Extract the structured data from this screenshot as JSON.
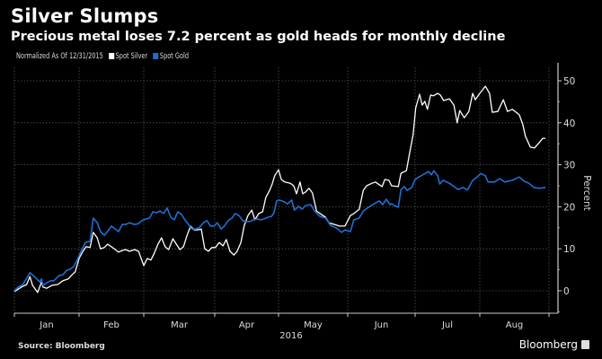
{
  "title": "Silver Slumps",
  "subtitle": "Precious metal loses 7.2 percent as gold heads for monthly decline",
  "legend": {
    "note": "Normalized As Of 12/31/2015",
    "items": [
      {
        "label": "Spot Silver",
        "color": "#ffffff"
      },
      {
        "label": "Spot Gold",
        "color": "#1f6fd1"
      }
    ]
  },
  "footer": {
    "source": "Source: Bloomberg",
    "brand": "Bloomberg"
  },
  "chart_data": {
    "type": "line",
    "title": "Silver Slumps",
    "subtitle": "Precious metal loses 7.2 percent as gold heads for monthly decline",
    "xlabel": "2016",
    "ylabel": "Percent",
    "x_unit": "months elapsed since Jan 1, 2016",
    "x_range": [
      0,
      8
    ],
    "ylim": [
      -5,
      53
    ],
    "y_ticks": [
      0,
      10,
      20,
      30,
      40,
      50
    ],
    "x_tick_labels": [
      "Jan",
      "Feb",
      "Mar",
      "Apr",
      "May",
      "Jun",
      "Jul",
      "Aug"
    ],
    "grid": true,
    "legend_position": "top-left",
    "series": [
      {
        "name": "Spot Silver",
        "color": "#ffffff",
        "points": [
          [
            0.0,
            -0.2
          ],
          [
            0.11,
            0.9
          ],
          [
            0.19,
            1.5
          ],
          [
            0.24,
            3.4
          ],
          [
            0.28,
            1.3
          ],
          [
            0.36,
            -0.4
          ],
          [
            0.42,
            2.1
          ],
          [
            0.44,
            0.9
          ],
          [
            0.5,
            0.6
          ],
          [
            0.58,
            1.3
          ],
          [
            0.67,
            1.5
          ],
          [
            0.75,
            2.4
          ],
          [
            0.83,
            2.8
          ],
          [
            0.89,
            3.8
          ],
          [
            0.94,
            4.5
          ],
          [
            1.0,
            7.7
          ],
          [
            1.06,
            9.4
          ],
          [
            1.11,
            10.5
          ],
          [
            1.17,
            10.3
          ],
          [
            1.22,
            13.9
          ],
          [
            1.28,
            12.6
          ],
          [
            1.33,
            10.0
          ],
          [
            1.39,
            10.3
          ],
          [
            1.44,
            11.1
          ],
          [
            1.5,
            10.5
          ],
          [
            1.56,
            9.8
          ],
          [
            1.61,
            9.2
          ],
          [
            1.67,
            9.6
          ],
          [
            1.72,
            9.8
          ],
          [
            1.78,
            9.4
          ],
          [
            1.86,
            9.8
          ],
          [
            1.92,
            9.4
          ],
          [
            1.97,
            7.3
          ],
          [
            2.0,
            6.0
          ],
          [
            2.05,
            7.7
          ],
          [
            2.1,
            7.3
          ],
          [
            2.15,
            9.0
          ],
          [
            2.2,
            11.1
          ],
          [
            2.25,
            12.6
          ],
          [
            2.3,
            10.5
          ],
          [
            2.35,
            9.8
          ],
          [
            2.41,
            12.4
          ],
          [
            2.46,
            11.1
          ],
          [
            2.51,
            9.8
          ],
          [
            2.56,
            10.5
          ],
          [
            2.61,
            13.2
          ],
          [
            2.66,
            15.4
          ],
          [
            2.71,
            14.5
          ],
          [
            2.76,
            14.5
          ],
          [
            2.81,
            14.7
          ],
          [
            2.86,
            10.0
          ],
          [
            2.91,
            9.4
          ],
          [
            2.96,
            10.3
          ],
          [
            3.01,
            10.3
          ],
          [
            3.07,
            11.5
          ],
          [
            3.13,
            10.7
          ],
          [
            3.18,
            12.2
          ],
          [
            3.24,
            9.4
          ],
          [
            3.3,
            8.5
          ],
          [
            3.35,
            9.4
          ],
          [
            3.41,
            11.5
          ],
          [
            3.46,
            15.4
          ],
          [
            3.52,
            17.9
          ],
          [
            3.58,
            19.2
          ],
          [
            3.63,
            16.9
          ],
          [
            3.69,
            18.4
          ],
          [
            3.75,
            18.8
          ],
          [
            3.8,
            22.2
          ],
          [
            3.86,
            23.9
          ],
          [
            3.9,
            25.4
          ],
          [
            3.94,
            27.4
          ],
          [
            4.0,
            28.8
          ],
          [
            4.04,
            26.5
          ],
          [
            4.09,
            25.9
          ],
          [
            4.17,
            25.6
          ],
          [
            4.22,
            25.0
          ],
          [
            4.26,
            23.1
          ],
          [
            4.31,
            25.9
          ],
          [
            4.35,
            23.1
          ],
          [
            4.39,
            23.5
          ],
          [
            4.44,
            24.4
          ],
          [
            4.49,
            23.3
          ],
          [
            4.55,
            19.0
          ],
          [
            4.6,
            18.4
          ],
          [
            4.68,
            17.5
          ],
          [
            4.73,
            16.2
          ],
          [
            4.81,
            15.8
          ],
          [
            4.88,
            15.4
          ],
          [
            4.96,
            15.4
          ],
          [
            5.04,
            17.9
          ],
          [
            5.09,
            18.4
          ],
          [
            5.17,
            19.4
          ],
          [
            5.23,
            23.9
          ],
          [
            5.28,
            25.0
          ],
          [
            5.36,
            25.6
          ],
          [
            5.41,
            25.9
          ],
          [
            5.51,
            24.8
          ],
          [
            5.55,
            26.5
          ],
          [
            5.61,
            26.3
          ],
          [
            5.65,
            25.0
          ],
          [
            5.75,
            24.8
          ],
          [
            5.79,
            28.0
          ],
          [
            5.87,
            28.6
          ],
          [
            5.92,
            32.9
          ],
          [
            5.97,
            37.2
          ],
          [
            6.01,
            43.6
          ],
          [
            6.07,
            46.8
          ],
          [
            6.11,
            44.2
          ],
          [
            6.15,
            45.1
          ],
          [
            6.19,
            43.2
          ],
          [
            6.24,
            46.6
          ],
          [
            6.28,
            46.4
          ],
          [
            6.35,
            47.0
          ],
          [
            6.39,
            46.6
          ],
          [
            6.44,
            45.3
          ],
          [
            6.53,
            45.7
          ],
          [
            6.6,
            44.2
          ],
          [
            6.65,
            40.0
          ],
          [
            6.69,
            42.9
          ],
          [
            6.76,
            41.2
          ],
          [
            6.83,
            42.7
          ],
          [
            6.89,
            47.0
          ],
          [
            6.93,
            45.5
          ],
          [
            7.0,
            47.0
          ],
          [
            7.08,
            48.7
          ],
          [
            7.14,
            47.0
          ],
          [
            7.18,
            42.5
          ],
          [
            7.26,
            42.7
          ],
          [
            7.34,
            45.5
          ],
          [
            7.4,
            42.7
          ],
          [
            7.47,
            43.2
          ],
          [
            7.57,
            41.9
          ],
          [
            7.62,
            39.7
          ],
          [
            7.66,
            36.8
          ],
          [
            7.73,
            34.2
          ],
          [
            7.79,
            34.0
          ],
          [
            7.86,
            35.3
          ],
          [
            7.91,
            36.3
          ],
          [
            7.95,
            36.3
          ]
        ]
      },
      {
        "name": "Spot Gold",
        "color": "#1f6fd1",
        "points": [
          [
            0.0,
            0.0
          ],
          [
            0.06,
            0.9
          ],
          [
            0.13,
            1.5
          ],
          [
            0.19,
            3.0
          ],
          [
            0.24,
            4.3
          ],
          [
            0.31,
            3.4
          ],
          [
            0.39,
            2.1
          ],
          [
            0.42,
            2.8
          ],
          [
            0.44,
            1.3
          ],
          [
            0.5,
            1.9
          ],
          [
            0.56,
            2.4
          ],
          [
            0.61,
            2.4
          ],
          [
            0.69,
            3.6
          ],
          [
            0.75,
            3.8
          ],
          [
            0.81,
            4.9
          ],
          [
            0.86,
            5.1
          ],
          [
            0.92,
            5.8
          ],
          [
            0.97,
            7.3
          ],
          [
            1.03,
            9.4
          ],
          [
            1.1,
            11.5
          ],
          [
            1.17,
            11.8
          ],
          [
            1.22,
            17.3
          ],
          [
            1.28,
            16.2
          ],
          [
            1.33,
            14.1
          ],
          [
            1.39,
            13.2
          ],
          [
            1.44,
            14.1
          ],
          [
            1.5,
            15.4
          ],
          [
            1.56,
            14.7
          ],
          [
            1.61,
            14.1
          ],
          [
            1.67,
            15.8
          ],
          [
            1.72,
            15.8
          ],
          [
            1.78,
            16.2
          ],
          [
            1.86,
            15.8
          ],
          [
            1.92,
            16.0
          ],
          [
            1.97,
            16.7
          ],
          [
            2.03,
            17.1
          ],
          [
            2.08,
            17.3
          ],
          [
            2.13,
            18.8
          ],
          [
            2.18,
            18.6
          ],
          [
            2.23,
            19.0
          ],
          [
            2.28,
            18.4
          ],
          [
            2.33,
            19.7
          ],
          [
            2.38,
            17.5
          ],
          [
            2.43,
            16.9
          ],
          [
            2.48,
            18.8
          ],
          [
            2.53,
            18.2
          ],
          [
            2.58,
            16.9
          ],
          [
            2.63,
            15.8
          ],
          [
            2.68,
            14.7
          ],
          [
            2.73,
            14.7
          ],
          [
            2.78,
            15.0
          ],
          [
            2.84,
            16.2
          ],
          [
            2.89,
            16.7
          ],
          [
            2.94,
            15.4
          ],
          [
            2.99,
            15.4
          ],
          [
            3.04,
            16.2
          ],
          [
            3.1,
            14.7
          ],
          [
            3.15,
            15.4
          ],
          [
            3.21,
            16.7
          ],
          [
            3.27,
            17.3
          ],
          [
            3.32,
            18.4
          ],
          [
            3.38,
            17.9
          ],
          [
            3.44,
            16.7
          ],
          [
            3.49,
            16.5
          ],
          [
            3.55,
            16.5
          ],
          [
            3.61,
            16.9
          ],
          [
            3.66,
            17.1
          ],
          [
            3.72,
            16.9
          ],
          [
            3.77,
            17.1
          ],
          [
            3.83,
            17.5
          ],
          [
            3.89,
            17.7
          ],
          [
            3.93,
            18.6
          ],
          [
            3.97,
            21.4
          ],
          [
            4.01,
            21.6
          ],
          [
            4.08,
            21.2
          ],
          [
            4.13,
            20.7
          ],
          [
            4.19,
            21.6
          ],
          [
            4.23,
            19.2
          ],
          [
            4.29,
            20.1
          ],
          [
            4.34,
            19.4
          ],
          [
            4.39,
            20.3
          ],
          [
            4.47,
            20.5
          ],
          [
            4.52,
            19.0
          ],
          [
            4.6,
            17.7
          ],
          [
            4.68,
            17.3
          ],
          [
            4.75,
            15.6
          ],
          [
            4.83,
            15.0
          ],
          [
            4.91,
            13.9
          ],
          [
            4.96,
            14.5
          ],
          [
            5.04,
            14.1
          ],
          [
            5.09,
            16.9
          ],
          [
            5.17,
            17.3
          ],
          [
            5.23,
            19.0
          ],
          [
            5.33,
            20.1
          ],
          [
            5.41,
            20.9
          ],
          [
            5.47,
            21.4
          ],
          [
            5.52,
            20.5
          ],
          [
            5.57,
            21.8
          ],
          [
            5.63,
            20.5
          ],
          [
            5.65,
            20.7
          ],
          [
            5.69,
            20.3
          ],
          [
            5.75,
            19.9
          ],
          [
            5.79,
            24.1
          ],
          [
            5.84,
            24.8
          ],
          [
            5.88,
            23.9
          ],
          [
            5.95,
            24.6
          ],
          [
            6.0,
            26.5
          ],
          [
            6.06,
            27.1
          ],
          [
            6.14,
            27.8
          ],
          [
            6.21,
            28.4
          ],
          [
            6.25,
            27.6
          ],
          [
            6.29,
            28.6
          ],
          [
            6.35,
            27.4
          ],
          [
            6.38,
            25.4
          ],
          [
            6.43,
            26.3
          ],
          [
            6.53,
            25.6
          ],
          [
            6.6,
            24.8
          ],
          [
            6.67,
            24.1
          ],
          [
            6.74,
            24.6
          ],
          [
            6.81,
            24.0
          ],
          [
            6.89,
            26.3
          ],
          [
            6.96,
            27.1
          ],
          [
            7.01,
            27.9
          ],
          [
            7.08,
            27.4
          ],
          [
            7.12,
            25.9
          ],
          [
            7.21,
            25.9
          ],
          [
            7.29,
            26.7
          ],
          [
            7.36,
            25.9
          ],
          [
            7.47,
            26.3
          ],
          [
            7.57,
            27.1
          ],
          [
            7.64,
            26.1
          ],
          [
            7.71,
            25.6
          ],
          [
            7.78,
            24.6
          ],
          [
            7.86,
            24.4
          ],
          [
            7.95,
            24.6
          ]
        ]
      }
    ]
  }
}
